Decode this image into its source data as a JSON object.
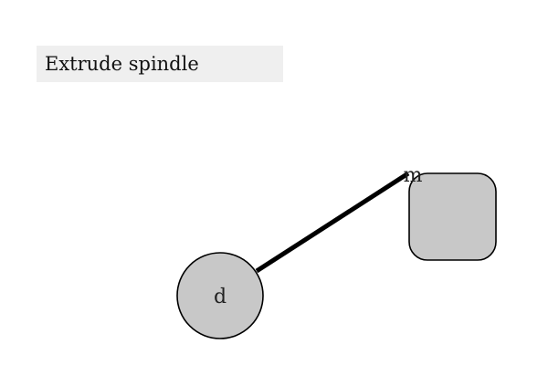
{
  "title": "Extrude spindle",
  "nodes": {
    "circle": {
      "label": "d"
    },
    "square": {
      "label": "m"
    }
  },
  "colors": {
    "node_fill": "#c8c8c8",
    "node_stroke": "#000000",
    "edge": "#000000",
    "title_bg": "#efefef"
  }
}
